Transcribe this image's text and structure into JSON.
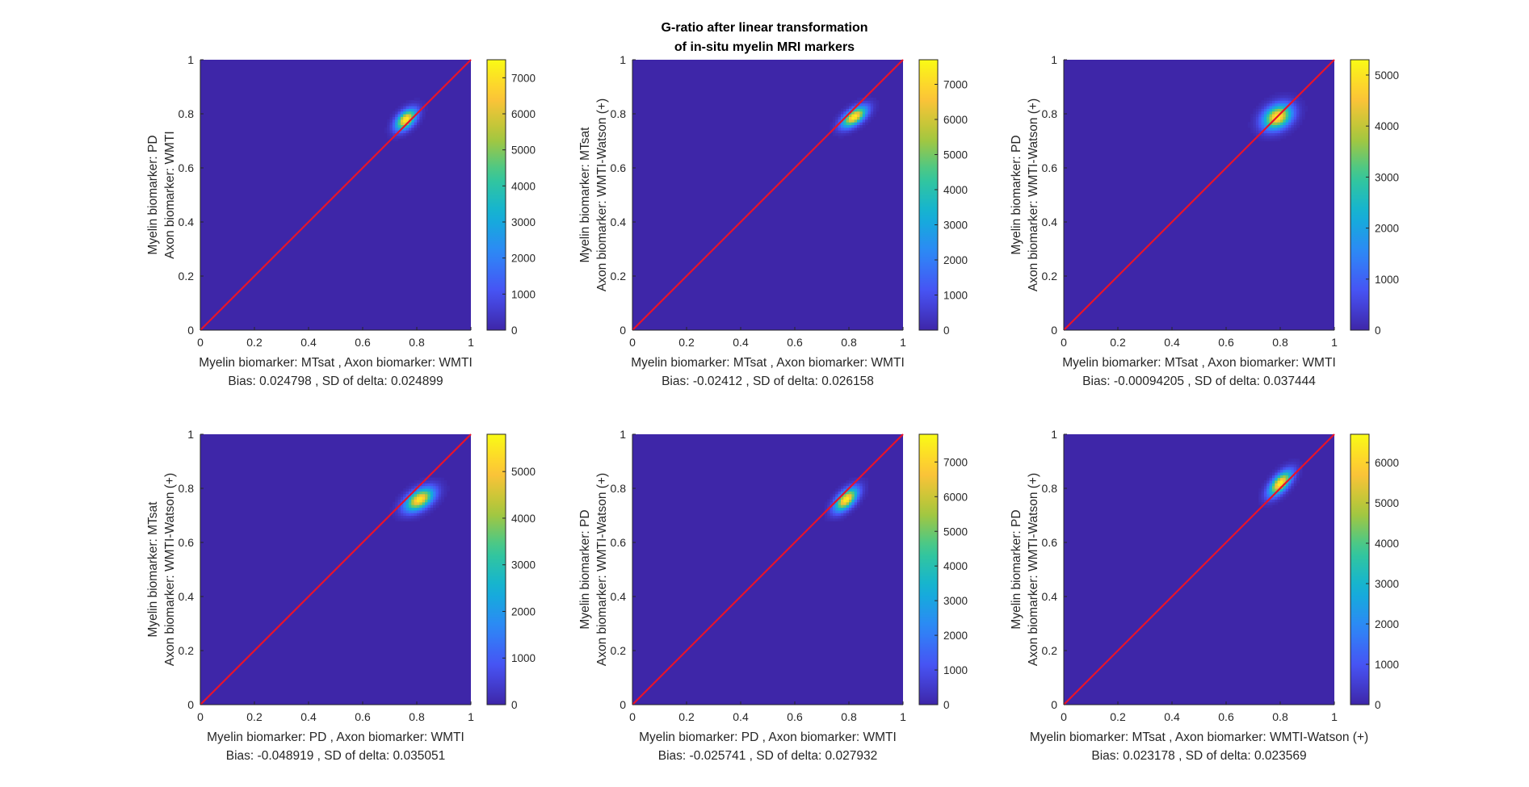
{
  "figure": {
    "title_line1": "G-ratio after linear transformation",
    "title_line2": "of in-situ myelin MRI markers"
  },
  "chart_data": [
    {
      "type": "heatmap",
      "xlabel": "Myelin biomarker: MTsat , Axon biomarker: WMTI",
      "stats": "Bias: 0.024798 , SD of delta: 0.024899",
      "ylabel_line1": "Myelin biomarker:  PD",
      "ylabel_line2": "Axon biomarker: WMTI",
      "xlim": [
        0,
        1
      ],
      "ylim": [
        0,
        1
      ],
      "xticks": [
        "0",
        "0.2",
        "0.4",
        "0.6",
        "0.8",
        "1"
      ],
      "yticks": [
        "0",
        "0.2",
        "0.4",
        "0.6",
        "0.8",
        "1"
      ],
      "identity_line": [
        [
          0,
          0
        ],
        [
          1,
          1
        ]
      ],
      "peak": {
        "x": 0.76,
        "y": 0.78,
        "max": 7400
      },
      "spread": {
        "sx": 0.025,
        "sy": 0.025,
        "rho": 0.5
      },
      "colorbar_ticks": [
        0,
        1000,
        2000,
        3000,
        4000,
        5000,
        6000,
        7000
      ],
      "colorbar_max": 7500
    },
    {
      "type": "heatmap",
      "xlabel": "Myelin biomarker: MTsat , Axon biomarker: WMTI",
      "stats": "Bias: -0.02412 , SD of delta: 0.026158",
      "ylabel_line1": "Myelin biomarker:  MTsat",
      "ylabel_line2": "Axon biomarker: WMTI-Watson (+)",
      "xlim": [
        0,
        1
      ],
      "ylim": [
        0,
        1
      ],
      "xticks": [
        "0",
        "0.2",
        "0.4",
        "0.6",
        "0.8",
        "1"
      ],
      "yticks": [
        "0",
        "0.2",
        "0.4",
        "0.6",
        "0.8",
        "1"
      ],
      "identity_line": [
        [
          0,
          0
        ],
        [
          1,
          1
        ]
      ],
      "peak": {
        "x": 0.82,
        "y": 0.79,
        "max": 7600
      },
      "spread": {
        "sx": 0.03,
        "sy": 0.025,
        "rho": 0.6
      },
      "colorbar_ticks": [
        0,
        1000,
        2000,
        3000,
        4000,
        5000,
        6000,
        7000
      ],
      "colorbar_max": 7700
    },
    {
      "type": "heatmap",
      "xlabel": "Myelin biomarker: MTsat , Axon biomarker: WMTI",
      "stats": "Bias: -0.00094205 , SD of delta: 0.037444",
      "ylabel_line1": "Myelin biomarker:  PD",
      "ylabel_line2": "Axon biomarker: WMTI-Watson (+)",
      "xlim": [
        0,
        1
      ],
      "ylim": [
        0,
        1
      ],
      "xticks": [
        "0",
        "0.2",
        "0.4",
        "0.6",
        "0.8",
        "1"
      ],
      "yticks": [
        "0",
        "0.2",
        "0.4",
        "0.6",
        "0.8",
        "1"
      ],
      "identity_line": [
        [
          0,
          0
        ],
        [
          1,
          1
        ]
      ],
      "peak": {
        "x": 0.79,
        "y": 0.79,
        "max": 5200
      },
      "spread": {
        "sx": 0.035,
        "sy": 0.03,
        "rho": 0.3
      },
      "colorbar_ticks": [
        0,
        1000,
        2000,
        3000,
        4000,
        5000
      ],
      "colorbar_max": 5300
    },
    {
      "type": "heatmap",
      "xlabel": "Myelin biomarker: PD , Axon biomarker: WMTI",
      "stats": "Bias: -0.048919 , SD of delta: 0.035051",
      "ylabel_line1": "Myelin biomarker:  MTsat",
      "ylabel_line2": "Axon biomarker: WMTI-Watson (+)",
      "xlim": [
        0,
        1
      ],
      "ylim": [
        0,
        1
      ],
      "xticks": [
        "0",
        "0.2",
        "0.4",
        "0.6",
        "0.8",
        "1"
      ],
      "yticks": [
        "0",
        "0.2",
        "0.4",
        "0.6",
        "0.8",
        "1"
      ],
      "identity_line": [
        [
          0,
          0
        ],
        [
          1,
          1
        ]
      ],
      "peak": {
        "x": 0.81,
        "y": 0.76,
        "max": 5600
      },
      "spread": {
        "sx": 0.035,
        "sy": 0.028,
        "rho": 0.5
      },
      "colorbar_ticks": [
        0,
        1000,
        2000,
        3000,
        4000,
        5000
      ],
      "colorbar_max": 5800
    },
    {
      "type": "heatmap",
      "xlabel": "Myelin biomarker: PD , Axon biomarker: WMTI",
      "stats": "Bias: -0.025741 , SD of delta: 0.027932",
      "ylabel_line1": "Myelin biomarker:  PD",
      "ylabel_line2": "Axon biomarker: WMTI-Watson (+)",
      "xlim": [
        0,
        1
      ],
      "ylim": [
        0,
        1
      ],
      "xticks": [
        "0",
        "0.2",
        "0.4",
        "0.6",
        "0.8",
        "1"
      ],
      "yticks": [
        "0",
        "0.2",
        "0.4",
        "0.6",
        "0.8",
        "1"
      ],
      "identity_line": [
        [
          0,
          0
        ],
        [
          1,
          1
        ]
      ],
      "peak": {
        "x": 0.79,
        "y": 0.76,
        "max": 7700
      },
      "spread": {
        "sx": 0.028,
        "sy": 0.028,
        "rho": 0.6
      },
      "colorbar_ticks": [
        0,
        1000,
        2000,
        3000,
        4000,
        5000,
        6000,
        7000
      ],
      "colorbar_max": 7800
    },
    {
      "type": "heatmap",
      "xlabel": "Myelin biomarker: MTsat , Axon biomarker: WMTI-Watson (+)",
      "stats": "Bias: 0.023178 , SD of delta: 0.023569",
      "ylabel_line1": "Myelin biomarker:  PD",
      "ylabel_line2": "Axon biomarker: WMTI-Watson (+)",
      "xlim": [
        0,
        1
      ],
      "ylim": [
        0,
        1
      ],
      "xticks": [
        "0",
        "0.2",
        "0.4",
        "0.6",
        "0.8",
        "1"
      ],
      "yticks": [
        "0",
        "0.2",
        "0.4",
        "0.6",
        "0.8",
        "1"
      ],
      "identity_line": [
        [
          0,
          0
        ],
        [
          1,
          1
        ]
      ],
      "peak": {
        "x": 0.8,
        "y": 0.82,
        "max": 6600
      },
      "spread": {
        "sx": 0.028,
        "sy": 0.03,
        "rho": 0.65
      },
      "colorbar_ticks": [
        0,
        1000,
        2000,
        3000,
        4000,
        5000,
        6000
      ],
      "colorbar_max": 6700
    }
  ],
  "colors": {
    "background_low": "#3e26a8",
    "identity_line": "#e8132a",
    "axis": "#262626"
  }
}
